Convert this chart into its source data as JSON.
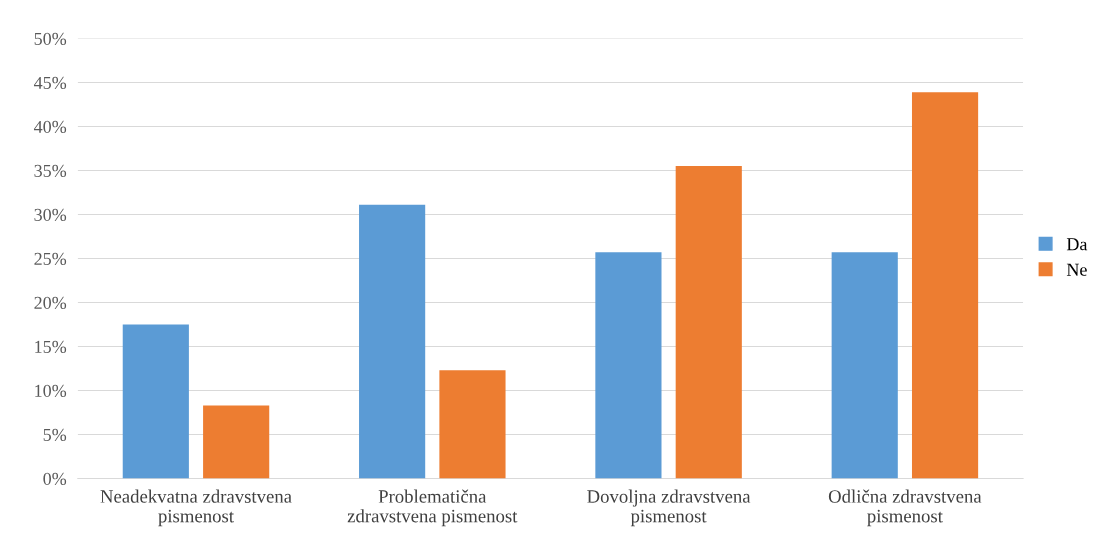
{
  "chart_data": {
    "type": "bar",
    "categories": [
      "Neadekvatna zdravstvena pismenost",
      "Problematična zdravstvena pismenost",
      "Dovoljna zdravstvena pismenost",
      "Odlična zdravstvena pismenost"
    ],
    "series": [
      {
        "name": "Da",
        "color": "#5b9bd5",
        "values": [
          17.5,
          31.1,
          25.7,
          25.7
        ]
      },
      {
        "name": "Ne",
        "color": "#ed7d31",
        "values": [
          8.3,
          12.3,
          35.5,
          43.9
        ]
      }
    ],
    "ylim": [
      0,
      50
    ],
    "yticks": [
      {
        "value": 0,
        "label": "0%"
      },
      {
        "value": 5,
        "label": "5%"
      },
      {
        "value": 10,
        "label": "10%"
      },
      {
        "value": 15,
        "label": "15%"
      },
      {
        "value": 20,
        "label": "20%"
      },
      {
        "value": 25,
        "label": "25%"
      },
      {
        "value": 30,
        "label": "30%"
      },
      {
        "value": 35,
        "label": "35%"
      },
      {
        "value": 40,
        "label": "40%"
      },
      {
        "value": 45,
        "label": "45%"
      },
      {
        "value": 50,
        "label": "50%"
      }
    ],
    "grid": "y",
    "legend": "right"
  }
}
